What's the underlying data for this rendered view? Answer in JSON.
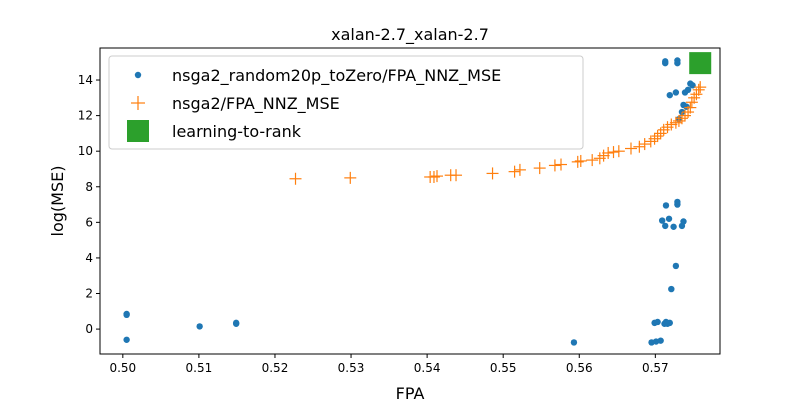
{
  "chart_data": {
    "type": "scatter",
    "title": "xalan-2.7_xalan-2.7",
    "xlabel": "FPA",
    "ylabel": "log(MSE)",
    "xlim": [
      0.497,
      0.5785
    ],
    "ylim": [
      -1.4,
      15.8
    ],
    "xticks": [
      "0.50",
      "0.51",
      "0.52",
      "0.53",
      "0.54",
      "0.55",
      "0.56",
      "0.57"
    ],
    "yticks": [
      "0",
      "2",
      "4",
      "6",
      "8",
      "10",
      "12",
      "14"
    ],
    "legend_position": "top-left",
    "grid": false,
    "series": [
      {
        "name": "nsga2_random20p_toZero/FPA_NNZ_MSE",
        "marker": "circle",
        "color": "#1f77b4",
        "points": [
          [
            0.5005,
            0.85
          ],
          [
            0.5005,
            0.8
          ],
          [
            0.5005,
            -0.6
          ],
          [
            0.5101,
            0.15
          ],
          [
            0.5149,
            0.3
          ],
          [
            0.5149,
            0.35
          ],
          [
            0.5593,
            -0.75
          ],
          [
            0.5695,
            -0.75
          ],
          [
            0.5701,
            -0.7
          ],
          [
            0.5707,
            -0.65
          ],
          [
            0.5699,
            0.35
          ],
          [
            0.5703,
            0.4
          ],
          [
            0.5712,
            0.3
          ],
          [
            0.5716,
            0.3
          ],
          [
            0.5719,
            0.35
          ],
          [
            0.5714,
            0.4
          ],
          [
            0.5721,
            2.25
          ],
          [
            0.5727,
            3.55
          ],
          [
            0.5713,
            5.8
          ],
          [
            0.5724,
            5.75
          ],
          [
            0.5735,
            5.8
          ],
          [
            0.5709,
            6.1
          ],
          [
            0.5718,
            6.2
          ],
          [
            0.5737,
            6.05
          ],
          [
            0.5729,
            7.0
          ],
          [
            0.5729,
            7.15
          ],
          [
            0.5714,
            6.95
          ],
          [
            0.5731,
            11.8
          ],
          [
            0.5735,
            12.2
          ],
          [
            0.5737,
            12.6
          ],
          [
            0.5741,
            12.5
          ],
          [
            0.5719,
            13.15
          ],
          [
            0.5727,
            13.3
          ],
          [
            0.5739,
            13.3
          ],
          [
            0.5743,
            13.45
          ],
          [
            0.5746,
            13.8
          ],
          [
            0.5749,
            13.7
          ],
          [
            0.5713,
            14.95
          ],
          [
            0.5713,
            15.05
          ],
          [
            0.5729,
            14.95
          ],
          [
            0.5729,
            15.1
          ]
        ]
      },
      {
        "name": "nsga2/FPA_NNZ_MSE",
        "marker": "plus",
        "color": "#ff7f0e",
        "points": [
          [
            0.5227,
            8.45
          ],
          [
            0.5299,
            8.5
          ],
          [
            0.5404,
            8.55
          ],
          [
            0.5409,
            8.55
          ],
          [
            0.5413,
            8.6
          ],
          [
            0.5431,
            8.65
          ],
          [
            0.5438,
            8.65
          ],
          [
            0.5486,
            8.75
          ],
          [
            0.5515,
            8.85
          ],
          [
            0.5522,
            8.95
          ],
          [
            0.5548,
            9.05
          ],
          [
            0.5568,
            9.2
          ],
          [
            0.5576,
            9.25
          ],
          [
            0.5598,
            9.4
          ],
          [
            0.5602,
            9.45
          ],
          [
            0.5617,
            9.5
          ],
          [
            0.5627,
            9.6
          ],
          [
            0.5632,
            9.75
          ],
          [
            0.5638,
            9.9
          ],
          [
            0.5645,
            9.95
          ],
          [
            0.5652,
            10.0
          ],
          [
            0.5668,
            10.15
          ],
          [
            0.5679,
            10.25
          ],
          [
            0.5686,
            10.4
          ],
          [
            0.5694,
            10.55
          ],
          [
            0.5699,
            10.7
          ],
          [
            0.5703,
            10.85
          ],
          [
            0.5707,
            11.0
          ],
          [
            0.5711,
            11.2
          ],
          [
            0.5716,
            11.35
          ],
          [
            0.5721,
            11.5
          ],
          [
            0.5727,
            11.6
          ],
          [
            0.5731,
            11.7
          ],
          [
            0.5735,
            11.85
          ],
          [
            0.5739,
            12.0
          ],
          [
            0.5743,
            12.2
          ],
          [
            0.5746,
            12.45
          ],
          [
            0.5748,
            12.75
          ],
          [
            0.5751,
            13.0
          ],
          [
            0.5754,
            13.2
          ],
          [
            0.5757,
            13.45
          ],
          [
            0.5759,
            13.6
          ]
        ]
      },
      {
        "name": "learning-to-rank",
        "marker": "square",
        "color": "#2ca02c",
        "points": [
          [
            0.5759,
            14.95
          ]
        ]
      }
    ]
  }
}
